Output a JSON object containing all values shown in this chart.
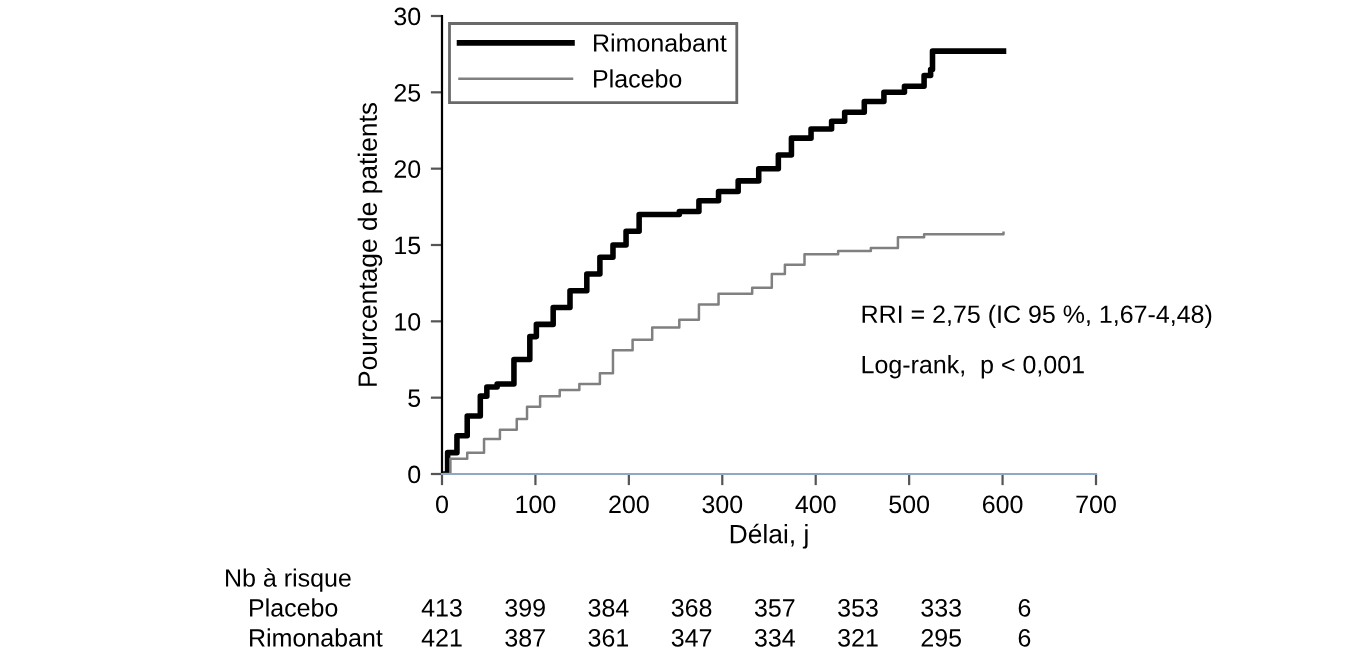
{
  "chart_data": {
    "type": "step",
    "xlabel": "Délai, j",
    "ylabel": "Pourcentage de patients",
    "xlim": [
      0,
      700
    ],
    "ylim": [
      0,
      30
    ],
    "xticks": [
      0,
      100,
      200,
      300,
      400,
      500,
      600,
      700
    ],
    "yticks": [
      0,
      5,
      10,
      15,
      20,
      25,
      30
    ],
    "grid": false,
    "legend": "top left",
    "series": [
      {
        "name": "Rimonabant",
        "color": "#000000",
        "x": [
          0,
          6,
          16,
          27,
          41,
          48,
          59,
          77,
          94,
          101,
          119,
          137,
          155,
          169,
          183,
          197,
          211,
          225,
          254,
          275,
          296,
          317,
          339,
          360,
          374,
          395,
          417,
          431,
          452,
          473,
          495,
          516,
          523,
          525,
          601
        ],
        "values": [
          0,
          1.4,
          2.5,
          3.8,
          5.1,
          5.7,
          5.9,
          7.5,
          9.0,
          9.8,
          10.9,
          12.0,
          13.1,
          14.2,
          15.0,
          15.9,
          17.0,
          17.0,
          17.2,
          17.9,
          18.5,
          19.2,
          20.0,
          20.9,
          22.0,
          22.6,
          23.1,
          23.7,
          24.4,
          25.0,
          25.4,
          26.1,
          26.5,
          27.7,
          27.7
        ]
      },
      {
        "name": "Placebo",
        "color": "#808080",
        "x": [
          0,
          9,
          27,
          45,
          62,
          80,
          91,
          105,
          126,
          147,
          169,
          183,
          204,
          225,
          254,
          275,
          296,
          332,
          353,
          367,
          388,
          424,
          459,
          488,
          516,
          601
        ],
        "values": [
          0,
          1.0,
          1.4,
          2.3,
          2.9,
          3.6,
          4.4,
          5.1,
          5.5,
          5.9,
          6.6,
          8.1,
          8.8,
          9.6,
          10.1,
          11.1,
          11.8,
          12.2,
          13.1,
          13.7,
          14.4,
          14.6,
          14.8,
          15.5,
          15.7,
          15.8
        ]
      }
    ],
    "annotations": [
      "RRI = 2,75 (IC 95 %, 1,67-4,48)",
      "Log-rank,  p < 0,001",
      "Nb à risque",
      "Placebo",
      "413",
      "399",
      "384",
      "368",
      "357",
      "353",
      "333",
      "6",
      "Rimonabant",
      "421",
      "387",
      "361",
      "347",
      "334",
      "321",
      "295",
      "6"
    ]
  }
}
